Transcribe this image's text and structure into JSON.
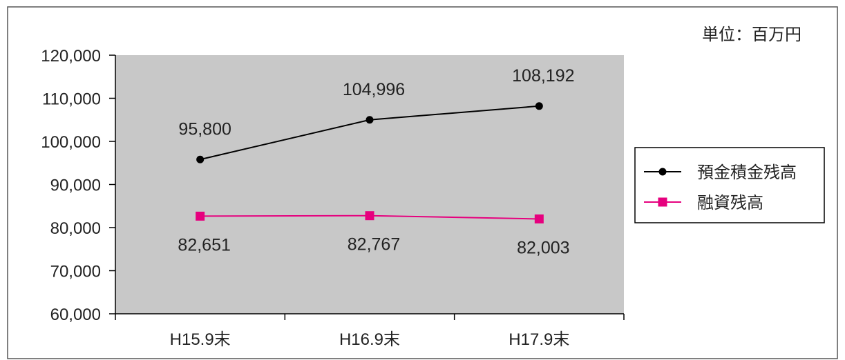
{
  "chart_data": {
    "type": "line",
    "unit_label": "単位：百万円",
    "categories": [
      "H15.9末",
      "H16.9末",
      "H17.9末"
    ],
    "ylim": [
      60000,
      120000
    ],
    "y_ticks": [
      60000,
      70000,
      80000,
      90000,
      100000,
      110000,
      120000
    ],
    "y_tick_labels": [
      "60,000",
      "70,000",
      "80,000",
      "90,000",
      "100,000",
      "110,000",
      "120,000"
    ],
    "plot_background": "#c8c8c8",
    "grid": false,
    "legend_position": "right",
    "series": [
      {
        "name": "預金積金残高",
        "values": [
          95800,
          104996,
          108192
        ],
        "labels": [
          "95,800",
          "104,996",
          "108,192"
        ],
        "color": "#000000",
        "marker": "circle"
      },
      {
        "name": "融資残高",
        "values": [
          82651,
          82767,
          82003
        ],
        "labels": [
          "82,651",
          "82,767",
          "82,003"
        ],
        "color": "#e6007e",
        "marker": "square"
      }
    ]
  }
}
